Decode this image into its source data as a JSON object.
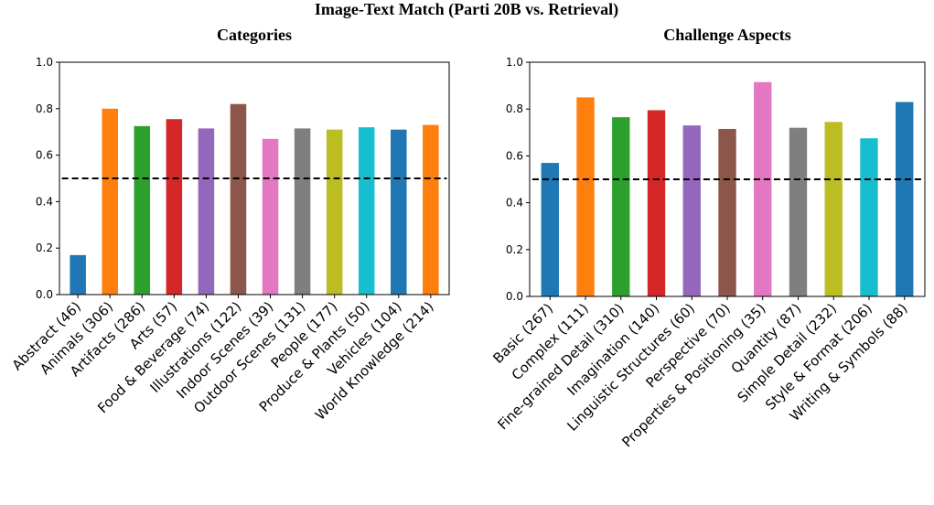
{
  "title": "Image-Text Match (Parti 20B vs. Retrieval)",
  "chart_data": [
    {
      "type": "bar",
      "title": "Categories",
      "categories": [
        "Abstract (46)",
        "Animals (306)",
        "Artifacts (286)",
        "Arts (57)",
        "Food & Beverage (74)",
        "Illustrations (122)",
        "Indoor Scenes (39)",
        "Outdoor Scenes (131)",
        "People (177)",
        "Produce & Plants (50)",
        "Vehicles (104)",
        "World Knowledge (214)"
      ],
      "values": [
        0.17,
        0.8,
        0.725,
        0.755,
        0.715,
        0.82,
        0.67,
        0.715,
        0.71,
        0.72,
        0.71,
        0.73
      ],
      "colors": [
        "#1f77b4",
        "#ff7f0e",
        "#2ca02c",
        "#d62728",
        "#9467bd",
        "#8c564b",
        "#e377c2",
        "#7f7f7f",
        "#bcbd22",
        "#17becf",
        "#1f77b4",
        "#ff7f0e"
      ],
      "ylim": [
        0,
        1
      ],
      "yticks": [
        {
          "value": 0,
          "label": "0.0"
        },
        0.2,
        0.4,
        0.6,
        0.8,
        {
          "value": 1,
          "label": "1.0"
        }
      ],
      "hline": {
        "value": 0.5,
        "color": "#000000",
        "style": "dashed"
      }
    },
    {
      "type": "bar",
      "title": "Challenge Aspects",
      "categories": [
        "Basic (267)",
        "Complex (111)",
        "Fine-grained Detail (310)",
        "Imagination (140)",
        "Linguistic Structures (60)",
        "Perspective (70)",
        "Properties & Positioning (35)",
        "Quantity (87)",
        "Simple Detail (232)",
        "Style & Format (206)",
        "Writing & Symbols (88)"
      ],
      "values": [
        0.57,
        0.85,
        0.765,
        0.795,
        0.73,
        0.715,
        0.915,
        0.72,
        0.745,
        0.675,
        0.83
      ],
      "colors": [
        "#1f77b4",
        "#ff7f0e",
        "#2ca02c",
        "#d62728",
        "#9467bd",
        "#8c564b",
        "#e377c2",
        "#7f7f7f",
        "#bcbd22",
        "#17becf",
        "#1f77b4"
      ],
      "ylim": [
        0,
        1
      ],
      "yticks": [
        {
          "value": 0,
          "label": "0.0"
        },
        0.2,
        0.4,
        0.6,
        0.8,
        {
          "value": 1,
          "label": "1.0"
        }
      ],
      "hline": {
        "value": 0.5,
        "color": "#000000",
        "style": "dashed"
      }
    }
  ]
}
